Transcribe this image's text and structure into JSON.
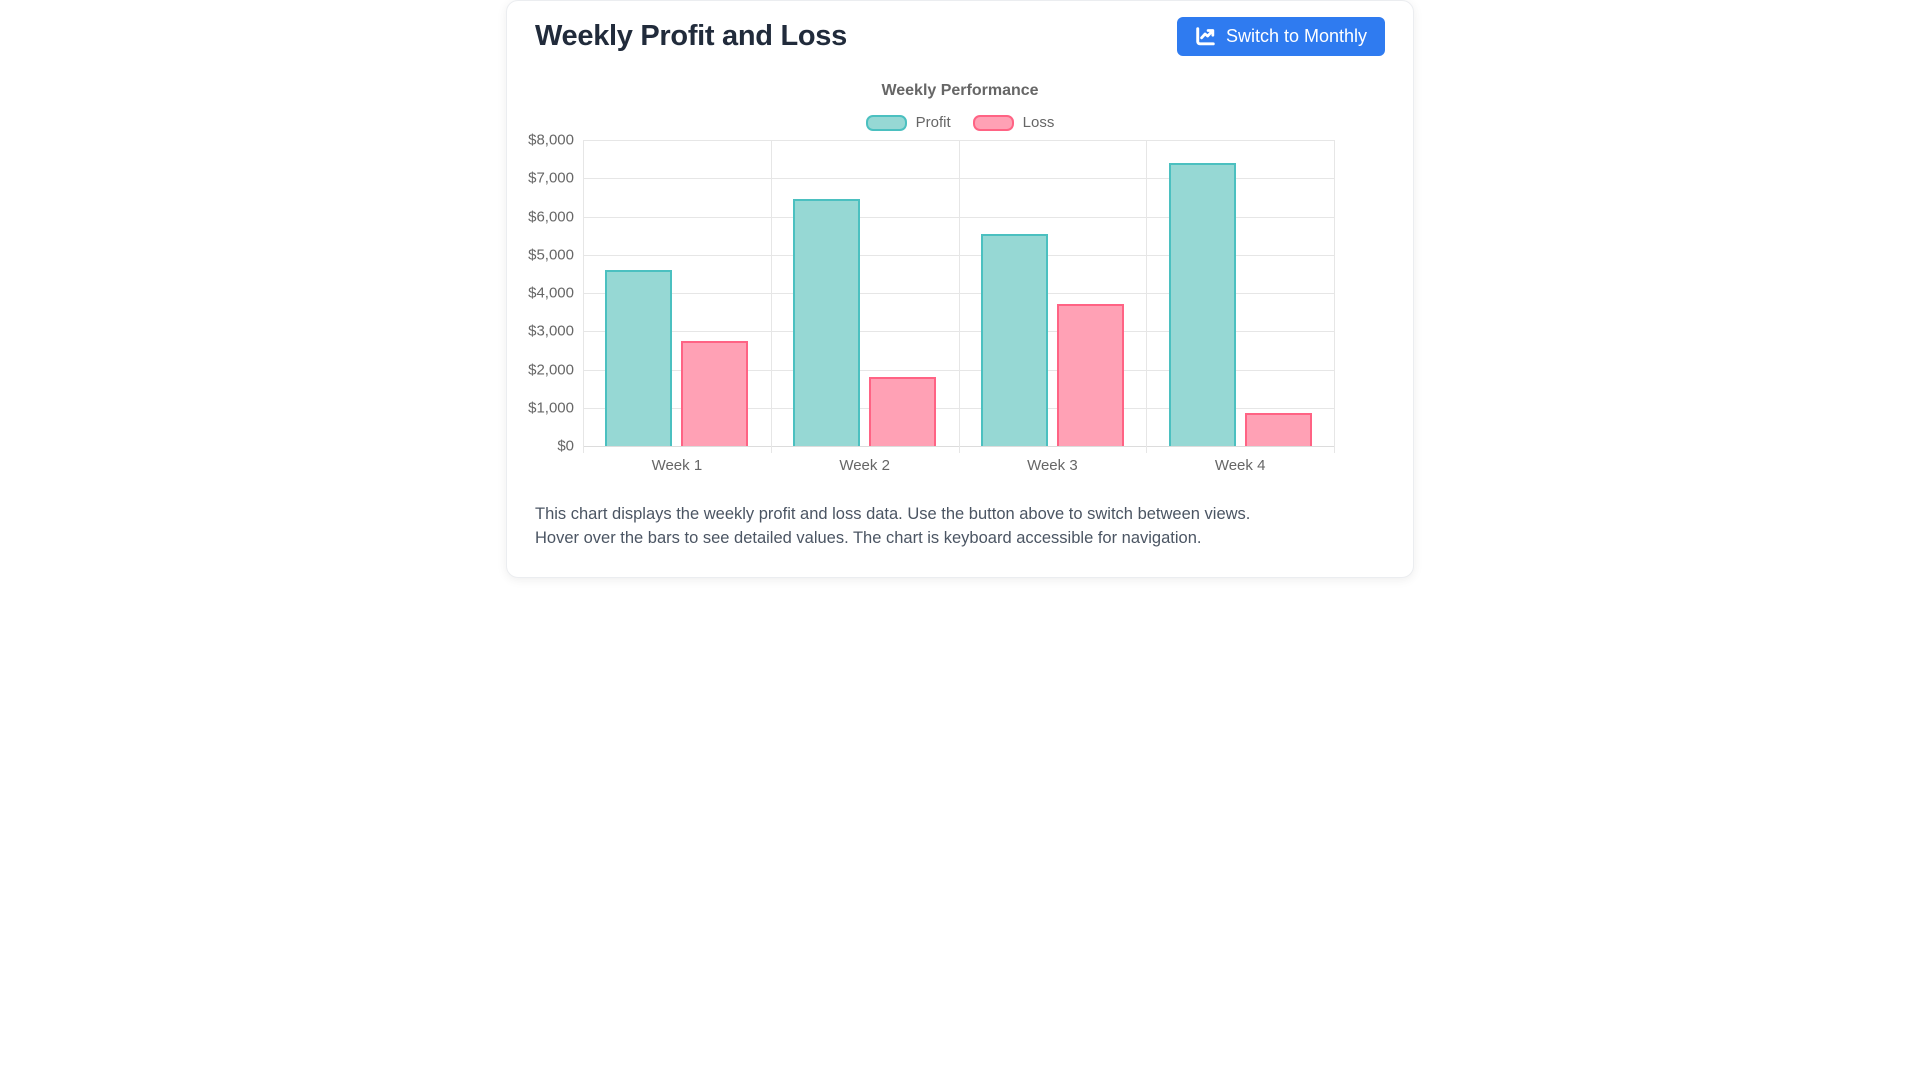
{
  "page": {
    "heading": "Weekly Profit and Loss"
  },
  "header": {
    "switch_button_label": "Switch to Monthly",
    "switch_button_icon": "chart-line-icon"
  },
  "description": {
    "line1": "This chart displays the weekly profit and loss data. Use the button above to switch between views.",
    "line2": "Hover over the bars to see detailed values. The chart is keyboard accessible for navigation."
  },
  "colors": {
    "accent_blue": "#2f7bf0",
    "profit_fill": "#96d8d4",
    "profit_border": "#4bc0c0",
    "loss_fill": "#ffa1b5",
    "loss_border": "#ff6384",
    "gridline": "#e6e6e6",
    "tick_text": "#666666"
  },
  "chart_data": {
    "type": "bar",
    "title": "Weekly Performance",
    "categories": [
      "Week 1",
      "Week 2",
      "Week 3",
      "Week 4"
    ],
    "series": [
      {
        "name": "Profit",
        "values": [
          4600,
          6450,
          5550,
          7400
        ],
        "fill": "#96d8d4",
        "border": "#4bc0c0"
      },
      {
        "name": "Loss",
        "values": [
          2750,
          1800,
          3700,
          875
        ],
        "fill": "#ffa1b5",
        "border": "#ff6384"
      }
    ],
    "ylabel_format": "currency_usd",
    "ytick_labels": [
      "$0",
      "$1,000",
      "$2,000",
      "$3,000",
      "$4,000",
      "$5,000",
      "$6,000",
      "$7,000",
      "$8,000"
    ],
    "ylim": [
      0,
      8000
    ],
    "ytick_step": 1000,
    "grid": true,
    "legend_position": "top"
  }
}
